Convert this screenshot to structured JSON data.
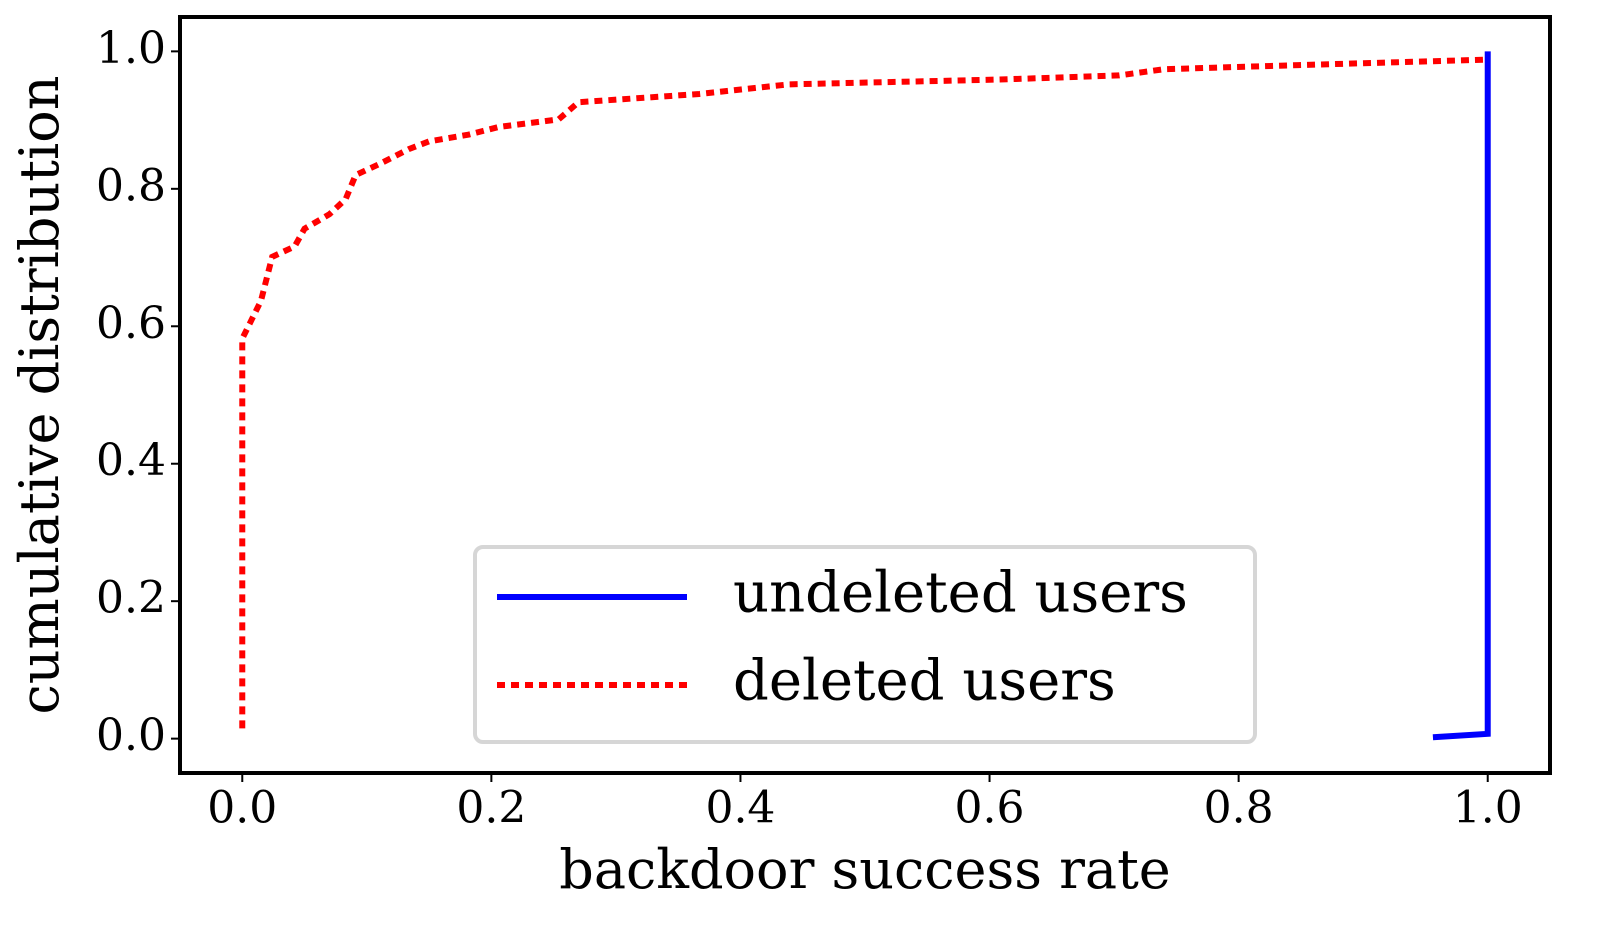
{
  "chart_data": {
    "type": "line",
    "xlabel": "backdoor success rate",
    "ylabel": "cumulative distribution",
    "xlim": [
      -0.05,
      1.05
    ],
    "ylim": [
      -0.05,
      1.05
    ],
    "xticks": [
      {
        "value": 0,
        "label": "0.0"
      },
      {
        "value": 0.2,
        "label": "0.2"
      },
      {
        "value": 0.4,
        "label": "0.4"
      },
      {
        "value": 0.6,
        "label": "0.6"
      },
      {
        "value": 0.8,
        "label": "0.8"
      },
      {
        "value": 1,
        "label": "1.0"
      }
    ],
    "yticks": [
      {
        "value": 0,
        "label": "0.0"
      },
      {
        "value": 0.2,
        "label": "0.2"
      },
      {
        "value": 0.4,
        "label": "0.4"
      },
      {
        "value": 0.6,
        "label": "0.6"
      },
      {
        "value": 0.8,
        "label": "0.8"
      },
      {
        "value": 1,
        "label": "1.0"
      }
    ],
    "legend": "lower center",
    "series": [
      {
        "name": "undeleted users",
        "color": "#0000ff",
        "style": "solid",
        "x": [
          0.956,
          1.0,
          1.0
        ],
        "values": [
          0.002,
          0.007,
          1.0
        ]
      },
      {
        "name": "deleted users",
        "color": "#ff0000",
        "style": "dotted",
        "x": [
          0.0,
          0.0,
          0.006,
          0.015,
          0.024,
          0.042,
          0.05,
          0.07,
          0.083,
          0.091,
          0.11,
          0.134,
          0.15,
          0.182,
          0.206,
          0.254,
          0.27,
          0.367,
          0.439,
          0.608,
          0.704,
          0.74,
          0.848,
          1.0
        ],
        "values": [
          0.015,
          0.582,
          0.604,
          0.637,
          0.701,
          0.716,
          0.742,
          0.763,
          0.785,
          0.82,
          0.836,
          0.858,
          0.869,
          0.879,
          0.89,
          0.901,
          0.926,
          0.938,
          0.952,
          0.959,
          0.965,
          0.974,
          0.98,
          0.988
        ]
      }
    ]
  }
}
